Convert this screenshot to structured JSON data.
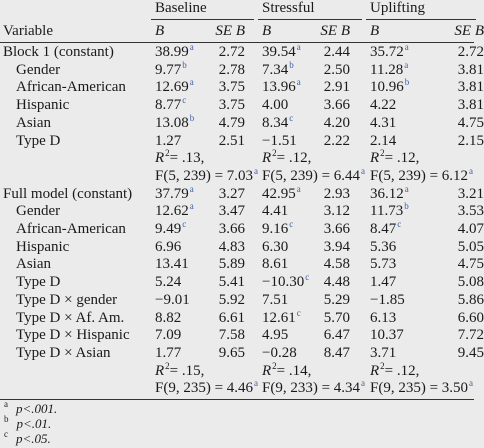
{
  "table": {
    "variable_header": "Variable",
    "groups": [
      {
        "name": "Baseline",
        "b_header": "B",
        "se_header": "SE B"
      },
      {
        "name": "Stressful",
        "b_header": "B",
        "se_header": "SE B"
      },
      {
        "name": "Uplifting",
        "b_header": "B",
        "se_header": "SE B"
      }
    ],
    "blocks": [
      {
        "label": "Block 1 (constant)",
        "values": [
          {
            "b": "38.99",
            "sup": "a",
            "se": "2.72"
          },
          {
            "b": "39.54",
            "sup": "a",
            "se": "2.44"
          },
          {
            "b": "35.72",
            "sup": "a",
            "se": "2.72"
          }
        ],
        "rows": [
          {
            "label": "Gender",
            "values": [
              {
                "b": "9.77",
                "sup": "b",
                "se": "2.78"
              },
              {
                "b": "7.34",
                "sup": "b",
                "se": "2.50"
              },
              {
                "b": "11.28",
                "sup": "a",
                "se": "3.81"
              }
            ]
          },
          {
            "label": "African-American",
            "values": [
              {
                "b": "12.69",
                "sup": "a",
                "se": "3.75"
              },
              {
                "b": "13.96",
                "sup": "a",
                "se": "2.91"
              },
              {
                "b": "10.96",
                "sup": "b",
                "se": "3.81"
              }
            ]
          },
          {
            "label": "Hispanic",
            "values": [
              {
                "b": "8.77",
                "sup": "c",
                "se": "3.75"
              },
              {
                "b": "4.00",
                "se": "3.66"
              },
              {
                "b": "4.22",
                "se": "3.81"
              }
            ]
          },
          {
            "label": "Asian",
            "values": [
              {
                "b": "13.08",
                "sup": "b",
                "se": "4.79"
              },
              {
                "b": "8.34",
                "sup": "c",
                "se": "4.20"
              },
              {
                "b": "4.31",
                "se": "4.75"
              }
            ]
          },
          {
            "label": "Type D",
            "values": [
              {
                "b": "1.27",
                "se": "2.51"
              },
              {
                "b": "−1.51",
                "se": "2.22"
              },
              {
                "b": "2.14",
                "se": "2.15"
              }
            ]
          }
        ],
        "stats": [
          {
            "r": "R",
            "r_exp": "2",
            "r_value": "= .13,",
            "f": "F(5, 239) = 7.03",
            "sup": "a"
          },
          {
            "r": "R",
            "r_exp": "2",
            "r_value": "= .12,",
            "f": "F(5, 239) = 6.44",
            "sup": "a"
          },
          {
            "r": "R",
            "r_exp": "2",
            "r_value": "= .12,",
            "f": "F(5, 239) = 6.12",
            "sup": "a"
          }
        ]
      },
      {
        "label": "Full model (constant)",
        "values": [
          {
            "b": "37.79",
            "sup": "a",
            "se": "3.27"
          },
          {
            "b": "42.95",
            "sup": "a",
            "se": "2.93"
          },
          {
            "b": "36.12",
            "sup": "a",
            "se": "3.21"
          }
        ],
        "rows": [
          {
            "label": "Gender",
            "values": [
              {
                "b": "12.62",
                "sup": "a",
                "se": "3.47"
              },
              {
                "b": "4.41",
                "se": "3.12"
              },
              {
                "b": "11.73",
                "sup": "b",
                "se": "3.53"
              }
            ]
          },
          {
            "label": "African-American",
            "values": [
              {
                "b": "9.49",
                "sup": "c",
                "se": "3.66"
              },
              {
                "b": "9.16",
                "sup": "c",
                "se": "3.66"
              },
              {
                "b": "8.47",
                "sup": "c",
                "se": "4.07"
              }
            ]
          },
          {
            "label": "Hispanic",
            "values": [
              {
                "b": "6.96",
                "se": "4.83"
              },
              {
                "b": "6.30",
                "se": "3.94"
              },
              {
                "b": "5.36",
                "se": "5.05"
              }
            ]
          },
          {
            "label": "Asian",
            "values": [
              {
                "b": "13.41",
                "se": "5.89"
              },
              {
                "b": "8.61",
                "se": "4.58"
              },
              {
                "b": "5.73",
                "se": "4.75"
              }
            ]
          },
          {
            "label": "Type D",
            "values": [
              {
                "b": "5.24",
                "se": "5.41"
              },
              {
                "b": "−10.30",
                "sup": "c",
                "se": "4.48"
              },
              {
                "b": "1.47",
                "se": "5.08"
              }
            ]
          },
          {
            "label": "Type D × gender",
            "values": [
              {
                "b": "−9.01",
                "se": "5.92"
              },
              {
                "b": "7.51",
                "se": "5.29"
              },
              {
                "b": "−1.85",
                "se": "5.86"
              }
            ]
          },
          {
            "label": "Type D × Af. Am.",
            "values": [
              {
                "b": "8.82",
                "se": "6.61"
              },
              {
                "b": "12.61",
                "sup": "c",
                "se": "5.70"
              },
              {
                "b": "6.13",
                "se": "6.60"
              }
            ]
          },
          {
            "label": "Type D × Hispanic",
            "values": [
              {
                "b": "7.09",
                "se": "7.58"
              },
              {
                "b": "4.95",
                "se": "6.47"
              },
              {
                "b": "10.37",
                "se": "7.72"
              }
            ]
          },
          {
            "label": "Type D × Asian",
            "values": [
              {
                "b": "1.77",
                "se": "9.65"
              },
              {
                "b": "−0.28",
                "se": "8.47"
              },
              {
                "b": "3.71",
                "se": "9.45"
              }
            ]
          }
        ],
        "stats": [
          {
            "r": "R",
            "r_exp": "2",
            "r_value": "= .15,",
            "f": "F(9, 235) = 4.46",
            "sup": "a"
          },
          {
            "r": "R",
            "r_exp": "2",
            "r_value": "= .14,",
            "f": "F(9, 233) = 4.34",
            "sup": "a"
          },
          {
            "r": "R",
            "r_exp": "2",
            "r_value": "= .12,",
            "f": "F(9, 235) = 3.50",
            "sup": "a"
          }
        ]
      }
    ],
    "footnotes": [
      {
        "mark": "a",
        "text": "p<.001."
      },
      {
        "mark": "b",
        "text": "p<.01."
      },
      {
        "mark": "c",
        "text": "p<.05."
      }
    ]
  }
}
